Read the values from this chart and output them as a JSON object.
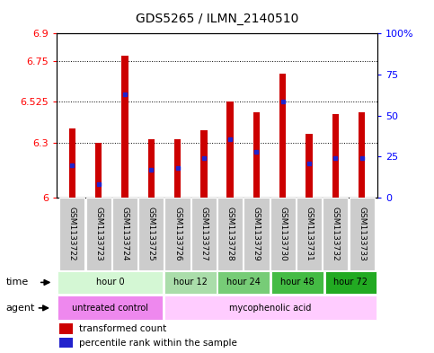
{
  "title": "GDS5265 / ILMN_2140510",
  "samples": [
    "GSM1133722",
    "GSM1133723",
    "GSM1133724",
    "GSM1133725",
    "GSM1133726",
    "GSM1133727",
    "GSM1133728",
    "GSM1133729",
    "GSM1133730",
    "GSM1133731",
    "GSM1133732",
    "GSM1133733"
  ],
  "bar_values": [
    6.38,
    6.3,
    6.78,
    6.32,
    6.32,
    6.37,
    6.525,
    6.47,
    6.68,
    6.35,
    6.46,
    6.47
  ],
  "bar_base": 6.0,
  "blue_dot_values": [
    6.18,
    6.075,
    6.565,
    6.155,
    6.165,
    6.215,
    6.32,
    6.25,
    6.525,
    6.19,
    6.215,
    6.215
  ],
  "ylim": [
    6.0,
    6.9
  ],
  "yticks_left": [
    6.0,
    6.3,
    6.525,
    6.75,
    6.9
  ],
  "ytick_labels_left": [
    "6",
    "6.3",
    "6.525",
    "6.75",
    "6.9"
  ],
  "yticks_right_vals": [
    6.0,
    6.225,
    6.45,
    6.675,
    6.9
  ],
  "ytick_labels_right": [
    "0",
    "25",
    "50",
    "75",
    "100%"
  ],
  "bar_color": "#cc0000",
  "blue_dot_color": "#2222cc",
  "time_groups": [
    {
      "label": "hour 0",
      "start": 0,
      "end": 4,
      "color": "#d4f7d4"
    },
    {
      "label": "hour 12",
      "start": 4,
      "end": 6,
      "color": "#aaddaa"
    },
    {
      "label": "hour 24",
      "start": 6,
      "end": 8,
      "color": "#77cc77"
    },
    {
      "label": "hour 48",
      "start": 8,
      "end": 10,
      "color": "#44bb44"
    },
    {
      "label": "hour 72",
      "start": 10,
      "end": 12,
      "color": "#22aa22"
    }
  ],
  "agent_groups": [
    {
      "label": "untreated control",
      "start": 0,
      "end": 4,
      "color": "#ee88ee"
    },
    {
      "label": "mycophenolic acid",
      "start": 4,
      "end": 12,
      "color": "#ffccff"
    }
  ],
  "legend_red_label": "transformed count",
  "legend_blue_label": "percentile rank within the sample",
  "background_color": "#ffffff",
  "sample_bg_color": "#cccccc",
  "bar_width": 0.25
}
